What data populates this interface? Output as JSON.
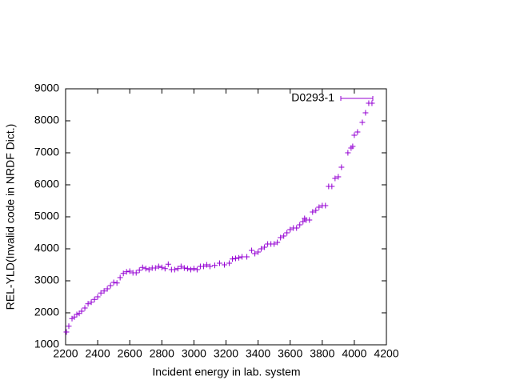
{
  "chart_data": {
    "type": "scatter",
    "xlabel": "Incident energy in lab. system",
    "ylabel": "REL-YLD(Invalid code in NRDF Dict.)",
    "xlim": [
      2200,
      4200
    ],
    "xticks": [
      2200,
      2400,
      2600,
      2800,
      3000,
      3200,
      3400,
      3600,
      3800,
      4000,
      4200
    ],
    "ylim": [
      1000,
      9000
    ],
    "yticks": [
      1000,
      2000,
      3000,
      4000,
      5000,
      6000,
      7000,
      8000,
      9000
    ],
    "legend": "top-right",
    "series": [
      {
        "name": "D0293-1",
        "color": "#9400d3",
        "x": [
          2205,
          2220,
          2240,
          2255,
          2270,
          2285,
          2300,
          2320,
          2340,
          2360,
          2380,
          2400,
          2420,
          2440,
          2460,
          2480,
          2500,
          2520,
          2540,
          2560,
          2580,
          2600,
          2620,
          2640,
          2660,
          2680,
          2700,
          2720,
          2740,
          2760,
          2780,
          2800,
          2820,
          2840,
          2860,
          2880,
          2900,
          2920,
          2940,
          2960,
          2980,
          3000,
          3020,
          3040,
          3060,
          3080,
          3100,
          3130,
          3160,
          3190,
          3220,
          3240,
          3260,
          3280,
          3300,
          3330,
          3360,
          3380,
          3400,
          3420,
          3440,
          3460,
          3480,
          3500,
          3520,
          3540,
          3560,
          3580,
          3600,
          3620,
          3640,
          3660,
          3680,
          3690,
          3700,
          3720,
          3740,
          3760,
          3780,
          3800,
          3820,
          3840,
          3860,
          3880,
          3900,
          3920,
          3960,
          3980,
          3990,
          4000,
          4020,
          4050,
          4070,
          4090,
          4110
        ],
        "values": [
          1400,
          1580,
          1820,
          1870,
          1950,
          1980,
          2050,
          2150,
          2280,
          2330,
          2420,
          2500,
          2620,
          2680,
          2750,
          2850,
          2950,
          2930,
          3100,
          3230,
          3280,
          3300,
          3250,
          3250,
          3330,
          3420,
          3380,
          3350,
          3400,
          3400,
          3450,
          3420,
          3380,
          3520,
          3350,
          3350,
          3380,
          3450,
          3400,
          3380,
          3350,
          3380,
          3350,
          3450,
          3450,
          3500,
          3450,
          3480,
          3550,
          3500,
          3550,
          3680,
          3700,
          3720,
          3750,
          3750,
          3950,
          3850,
          3900,
          4000,
          4050,
          4150,
          4150,
          4150,
          4200,
          4350,
          4400,
          4500,
          4600,
          4650,
          4650,
          4750,
          4850,
          4950,
          4900,
          4900,
          5150,
          5200,
          5300,
          5350,
          5350,
          5950,
          5950,
          6200,
          6250,
          6550,
          7000,
          7150,
          7200,
          7550,
          7650,
          7950,
          8250,
          8550,
          8550
        ]
      }
    ]
  }
}
